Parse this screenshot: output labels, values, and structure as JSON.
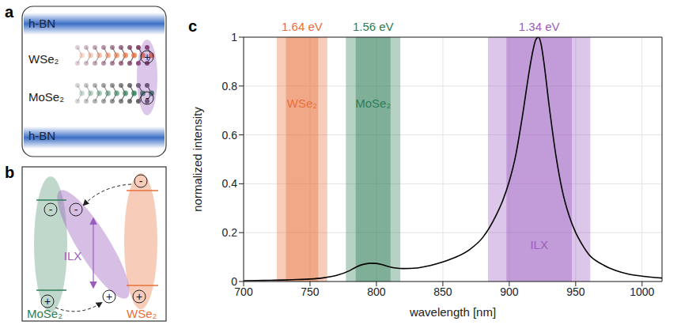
{
  "panel_a": {
    "letter": "a",
    "layers": [
      "h-BN",
      "WSe₂",
      "MoSe₂",
      "h-BN"
    ],
    "charges": [
      "+",
      "-"
    ]
  },
  "panel_b": {
    "letter": "b",
    "label": "ILX",
    "materials": [
      "MoSe₂",
      "WSe₂"
    ],
    "charges": [
      "-",
      "-",
      "-",
      "+",
      "+",
      "+"
    ]
  },
  "chart_data": {
    "letter": "c",
    "type": "line",
    "xlabel": "wavelength [nm]",
    "ylabel": "normalized intensity",
    "xlim": [
      700,
      1015
    ],
    "xticks": [
      700,
      750,
      800,
      850,
      900,
      950,
      1000
    ],
    "ylim": [
      0,
      1
    ],
    "yticks": [
      0,
      0.2,
      0.4,
      0.6,
      0.8,
      1
    ],
    "grid": true,
    "bands": [
      {
        "label": "WSe₂",
        "energy_label": "1.64 eV",
        "range": [
          725,
          763
        ],
        "color": "#e8703a"
      },
      {
        "label": "MoSe₂",
        "energy_label": "1.56 eV",
        "range": [
          777,
          818
        ],
        "color": "#2e7d56"
      },
      {
        "label": "ILX",
        "energy_label": "1.34 eV",
        "range": [
          884,
          961
        ],
        "color": "#9a5cbf"
      }
    ],
    "color": "#000000",
    "x": [
      700,
      710,
      720,
      730,
      740,
      750,
      760,
      770,
      780,
      785,
      790,
      795,
      800,
      805,
      810,
      815,
      820,
      830,
      840,
      850,
      860,
      870,
      880,
      890,
      895,
      900,
      905,
      910,
      915,
      918,
      920,
      922,
      924,
      926,
      930,
      935,
      940,
      945,
      950,
      955,
      960,
      970,
      980,
      990,
      1000,
      1010,
      1015
    ],
    "values": [
      0.003,
      0.004,
      0.005,
      0.006,
      0.008,
      0.01,
      0.015,
      0.025,
      0.045,
      0.06,
      0.07,
      0.075,
      0.074,
      0.068,
      0.06,
      0.055,
      0.053,
      0.055,
      0.065,
      0.08,
      0.1,
      0.13,
      0.18,
      0.27,
      0.33,
      0.41,
      0.52,
      0.68,
      0.86,
      0.95,
      0.99,
      1.0,
      0.97,
      0.9,
      0.72,
      0.52,
      0.37,
      0.27,
      0.2,
      0.15,
      0.11,
      0.07,
      0.045,
      0.03,
      0.022,
      0.016,
      0.014
    ]
  }
}
